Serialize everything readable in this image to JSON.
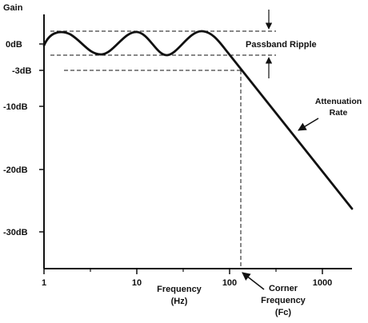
{
  "colors": {
    "ink": "#111111",
    "background": "#ffffff"
  },
  "axes": {
    "y_title": "Gain",
    "y_ticks": [
      "0dB",
      "-3dB",
      "-10dB",
      "-20dB",
      "-30dB"
    ],
    "x_title_line1": "Frequency",
    "x_title_line2": "(Hz)",
    "x_ticks": [
      "1",
      "10",
      "100",
      "1000"
    ],
    "x_scale": "log"
  },
  "annotations": {
    "passband_ripple": "Passband Ripple",
    "attenuation_line1": "Attenuation",
    "attenuation_line2": "Rate",
    "corner_line1": "Corner",
    "corner_line2": "Frequency",
    "corner_line3": "(Fc)"
  }
}
